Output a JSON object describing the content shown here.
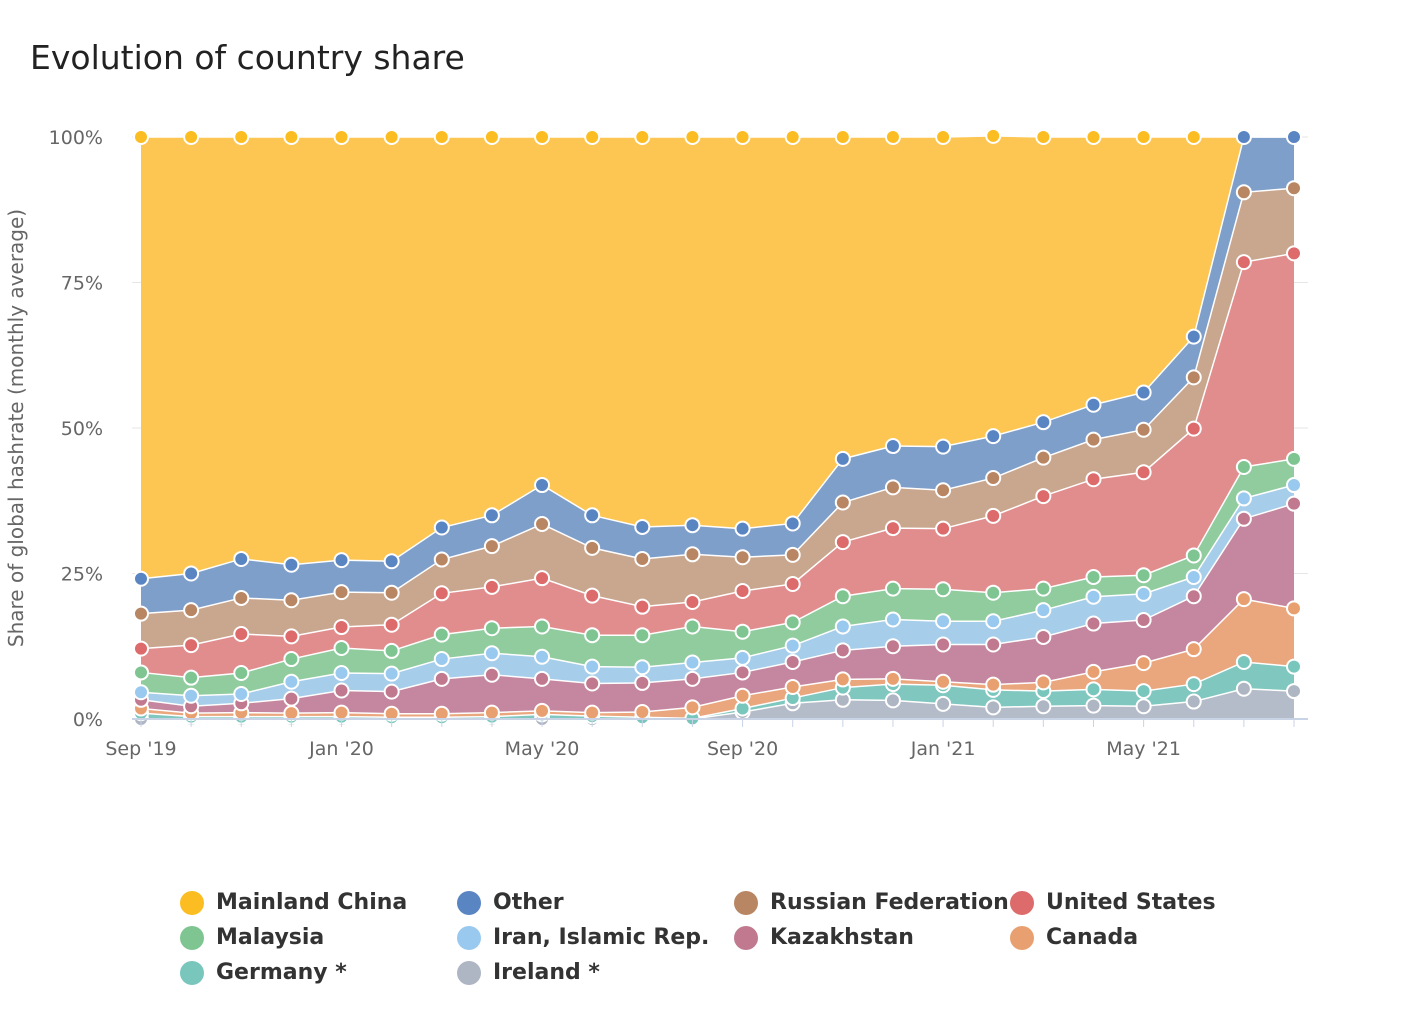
{
  "title": "Evolution of country share",
  "chart_data": {
    "type": "area",
    "stacked": true,
    "title": "Evolution of country share",
    "ylabel": "Share of global hashrate (monthly average)",
    "xlabel": "",
    "ylim": [
      0,
      100
    ],
    "y_ticks": [
      "0%",
      "25%",
      "50%",
      "75%",
      "100%"
    ],
    "x_ticks": [
      "Sep '19",
      "Jan '20",
      "May '20",
      "Sep '20",
      "Jan '21",
      "May '21"
    ],
    "x_tick_indices": [
      0,
      4,
      8,
      12,
      16,
      20
    ],
    "x": [
      "2019-09",
      "2019-10",
      "2019-11",
      "2019-12",
      "2020-01",
      "2020-02",
      "2020-03",
      "2020-04",
      "2020-05",
      "2020-06",
      "2020-07",
      "2020-08",
      "2020-09",
      "2020-10",
      "2020-11",
      "2020-12",
      "2021-01",
      "2021-02",
      "2021-03",
      "2021-04",
      "2021-05",
      "2021-06",
      "2021-07",
      "2021-08"
    ],
    "grid": true,
    "legend_position": "bottom",
    "series": [
      {
        "name": "Ireland *",
        "color": "#b5bcc9",
        "values": [
          0,
          0,
          0,
          0,
          0,
          0,
          0,
          0,
          0,
          0,
          0,
          0,
          1.2,
          2.7,
          3.3,
          3.2,
          2.6,
          2.0,
          2.2,
          2.3,
          2.2,
          3.0,
          5.2,
          4.8
        ]
      },
      {
        "name": "Germany *",
        "color": "#80c7bf",
        "values": [
          1.0,
          0.4,
          0.4,
          0.4,
          0.4,
          0.3,
          0.3,
          0.4,
          0.8,
          0.5,
          0.3,
          0.1,
          0.6,
          0.9,
          2.1,
          2.8,
          3.2,
          3.0,
          2.6,
          2.8,
          2.6,
          3.0,
          4.6,
          4.2
        ]
      },
      {
        "name": "Canada",
        "color": "#eaa67d",
        "values": [
          0.8,
          0.6,
          0.7,
          0.6,
          0.7,
          0.6,
          0.6,
          0.7,
          0.6,
          0.6,
          0.9,
          1.9,
          2.2,
          1.9,
          1.4,
          0.9,
          0.6,
          0.9,
          1.5,
          3.0,
          4.8,
          6.0,
          10.8,
          10.0
        ]
      },
      {
        "name": "Kazakhstan",
        "color": "#c5869f",
        "values": [
          1.5,
          1.2,
          1.6,
          2.5,
          3.8,
          3.8,
          6.0,
          6.5,
          5.5,
          5.0,
          5.0,
          4.9,
          4.0,
          4.3,
          5.0,
          5.6,
          6.4,
          6.9,
          7.8,
          8.3,
          7.4,
          9.1,
          13.8,
          18.0
        ]
      },
      {
        "name": "Iran, Islamic Rep.",
        "color": "#a6cdea",
        "values": [
          1.3,
          1.8,
          1.6,
          2.9,
          3.0,
          3.1,
          3.4,
          3.7,
          3.8,
          2.9,
          2.7,
          2.8,
          2.5,
          2.8,
          4.1,
          4.6,
          4.0,
          4.0,
          4.6,
          4.6,
          4.5,
          3.3,
          3.5,
          3.2
        ]
      },
      {
        "name": "Malaysia",
        "color": "#90cc9e",
        "values": [
          3.4,
          3.1,
          3.6,
          3.9,
          4.3,
          3.9,
          4.2,
          4.3,
          5.2,
          5.4,
          5.5,
          6.2,
          4.5,
          4.0,
          5.2,
          5.3,
          5.5,
          4.9,
          3.7,
          3.4,
          3.2,
          3.7,
          5.4,
          4.5
        ]
      },
      {
        "name": "United States",
        "color": "#e28d8d",
        "values": [
          4.1,
          5.6,
          6.7,
          3.9,
          3.6,
          4.5,
          7.1,
          7.1,
          8.3,
          6.8,
          4.9,
          4.2,
          7.0,
          6.6,
          9.3,
          10.4,
          10.4,
          13.2,
          15.9,
          16.8,
          17.7,
          21.8,
          35.2,
          35.3
        ]
      },
      {
        "name": "Russian Federation",
        "color": "#c9a68e",
        "values": [
          6.0,
          6.0,
          6.2,
          6.2,
          6.0,
          5.5,
          5.8,
          7.0,
          9.3,
          8.2,
          8.2,
          8.2,
          5.8,
          5.0,
          6.8,
          7.0,
          6.6,
          6.5,
          6.6,
          6.8,
          7.3,
          8.8,
          12.0,
          11.2
        ]
      },
      {
        "name": "Other",
        "color": "#7f9fcb",
        "values": [
          6.0,
          6.3,
          6.7,
          6.1,
          5.5,
          5.4,
          5.5,
          5.3,
          6.7,
          5.6,
          5.5,
          5.0,
          4.9,
          5.4,
          7.5,
          7.1,
          7.5,
          7.2,
          6.1,
          6.0,
          6.4,
          7.0,
          9.5,
          8.8
        ]
      },
      {
        "name": "Mainland China",
        "color": "#fdc653",
        "values": [
          75.9,
          75.0,
          72.5,
          73.5,
          72.7,
          72.9,
          67.1,
          65.0,
          59.8,
          65.0,
          67.0,
          66.7,
          67.3,
          66.4,
          55.3,
          53.1,
          53.2,
          51.6,
          49.0,
          46.0,
          43.9,
          34.3,
          0,
          0
        ]
      }
    ]
  },
  "legend": {
    "items": [
      {
        "label": "Mainland China",
        "color": "#fbbd22"
      },
      {
        "label": "Other",
        "color": "#5a85c3"
      },
      {
        "label": "Russian Federation",
        "color": "#b98663"
      },
      {
        "label": "United States",
        "color": "#dd6b6b"
      },
      {
        "label": "Malaysia",
        "color": "#7ec592"
      },
      {
        "label": "Iran, Islamic Rep.",
        "color": "#99c9ee"
      },
      {
        "label": "Kazakhstan",
        "color": "#c0798f"
      },
      {
        "label": "Canada",
        "color": "#e9a070"
      },
      {
        "label": "Germany *",
        "color": "#79c6bd"
      },
      {
        "label": "Ireland *",
        "color": "#aeb5c3"
      }
    ]
  }
}
